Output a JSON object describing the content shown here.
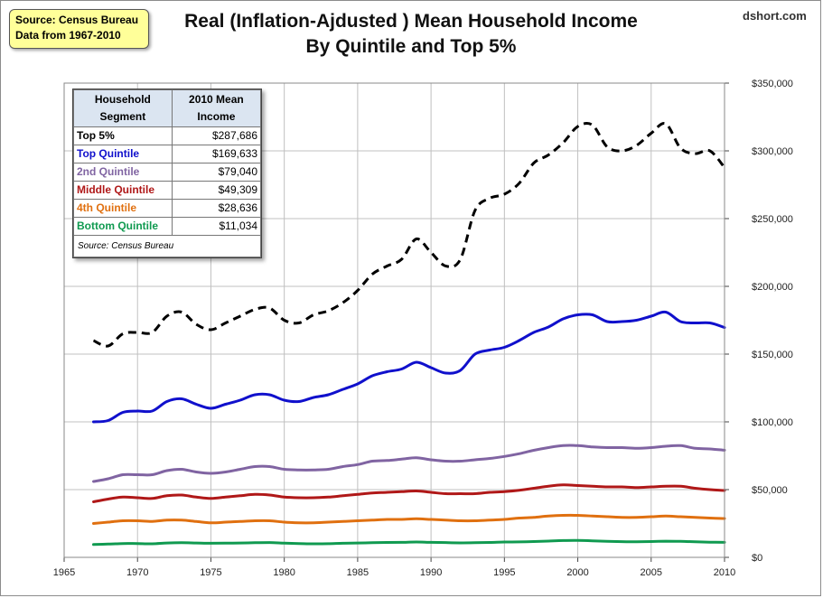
{
  "source_box": {
    "line1": "Source: Census Bureau",
    "line2": "Data from 1967-2010"
  },
  "title": {
    "line1": "Real (Inflation-Ajdusted ) Mean Household Income",
    "line2": "By Quintile and Top 5%"
  },
  "brand": "dshort.com",
  "table": {
    "headers": [
      "Household Segment",
      "2010 Mean Income"
    ],
    "rows": [
      {
        "label": "Top 5%",
        "value": "$287,686",
        "color": "#000000"
      },
      {
        "label": "Top Quintile",
        "value": "$169,633",
        "color": "#1010cc"
      },
      {
        "label": "2nd Quintile",
        "value": "$79,040",
        "color": "#8064a2"
      },
      {
        "label": "Middle Quintile",
        "value": "$49,309",
        "color": "#b01818"
      },
      {
        "label": "4th Quintile",
        "value": "$28,636",
        "color": "#e07010"
      },
      {
        "label": "Bottom Quintile",
        "value": "$11,034",
        "color": "#109a50"
      }
    ],
    "note": "Source: Census Bureau"
  },
  "chart_data": {
    "type": "line",
    "x": [
      1967,
      1968,
      1969,
      1970,
      1971,
      1972,
      1973,
      1974,
      1975,
      1976,
      1977,
      1978,
      1979,
      1980,
      1981,
      1982,
      1983,
      1984,
      1985,
      1986,
      1987,
      1988,
      1989,
      1990,
      1991,
      1992,
      1993,
      1994,
      1995,
      1996,
      1997,
      1998,
      1999,
      2000,
      2001,
      2002,
      2003,
      2004,
      2005,
      2006,
      2007,
      2008,
      2009,
      2010
    ],
    "xlim": [
      1965,
      2010
    ],
    "xticks": [
      1965,
      1970,
      1975,
      1980,
      1985,
      1990,
      1995,
      2000,
      2005,
      2010
    ],
    "ylim": [
      0,
      350000
    ],
    "yticks": [
      0,
      50000,
      100000,
      150000,
      200000,
      250000,
      300000,
      350000
    ],
    "ytick_labels": [
      "$0",
      "$50,000",
      "$100,000",
      "$150,000",
      "$200,000",
      "$250,000",
      "$300,000",
      "$350,000"
    ],
    "axis_side": "right",
    "grid": true,
    "series": [
      {
        "name": "Top 5%",
        "color": "#000000",
        "style": "dashed",
        "values": [
          160000,
          156000,
          165000,
          166000,
          166000,
          178000,
          181000,
          172000,
          168000,
          173000,
          178000,
          183000,
          184000,
          175000,
          173000,
          179000,
          182000,
          188000,
          197000,
          209000,
          215000,
          220000,
          235000,
          225000,
          215000,
          220000,
          256000,
          265000,
          268000,
          276000,
          291000,
          297000,
          306000,
          318000,
          319000,
          303000,
          300000,
          304000,
          313000,
          320000,
          302000,
          298000,
          300000,
          287686
        ]
      },
      {
        "name": "Top Quintile",
        "color": "#1010cc",
        "style": "solid",
        "values": [
          100000,
          101000,
          107000,
          108000,
          108000,
          115000,
          117000,
          113000,
          110000,
          113000,
          116000,
          120000,
          120000,
          116000,
          115000,
          118000,
          120000,
          124000,
          128000,
          134000,
          137000,
          139000,
          144000,
          140000,
          136000,
          138000,
          150000,
          153000,
          155000,
          160000,
          166000,
          170000,
          176000,
          179000,
          179000,
          174000,
          174000,
          175000,
          178000,
          181000,
          174000,
          173000,
          173000,
          169633
        ]
      },
      {
        "name": "2nd Quintile",
        "color": "#8064a2",
        "style": "solid",
        "values": [
          56000,
          58000,
          61000,
          61000,
          61000,
          64000,
          65000,
          63000,
          62000,
          63000,
          65000,
          67000,
          67000,
          65000,
          64500,
          64500,
          65000,
          67000,
          68500,
          71000,
          71500,
          72500,
          73500,
          72000,
          71000,
          71000,
          72000,
          73000,
          74500,
          76500,
          79000,
          81000,
          82500,
          82500,
          81500,
          81000,
          81000,
          80500,
          81000,
          82000,
          82500,
          80500,
          80000,
          79040
        ]
      },
      {
        "name": "Middle Quintile",
        "color": "#b01818",
        "style": "solid",
        "values": [
          41000,
          43000,
          44500,
          44000,
          43500,
          45500,
          46000,
          44500,
          43500,
          44500,
          45500,
          46500,
          46000,
          44500,
          44000,
          44000,
          44500,
          45500,
          46500,
          47500,
          48000,
          48500,
          49000,
          48000,
          47000,
          47000,
          47000,
          48000,
          48500,
          49500,
          51000,
          52500,
          53500,
          53000,
          52500,
          52000,
          52000,
          51500,
          52000,
          52500,
          52500,
          51000,
          50000,
          49309
        ]
      },
      {
        "name": "4th Quintile",
        "color": "#e07010",
        "style": "solid",
        "values": [
          25000,
          26000,
          27000,
          27000,
          26500,
          27500,
          27500,
          26500,
          25500,
          26000,
          26500,
          27000,
          27000,
          26000,
          25500,
          25500,
          26000,
          26500,
          27000,
          27500,
          28000,
          28000,
          28500,
          28000,
          27500,
          27000,
          27000,
          27500,
          28000,
          29000,
          29500,
          30500,
          31000,
          31000,
          30500,
          30000,
          29500,
          29500,
          30000,
          30500,
          30000,
          29500,
          29000,
          28636
        ]
      },
      {
        "name": "Bottom Quintile",
        "color": "#109a50",
        "style": "solid",
        "values": [
          9500,
          9800,
          10200,
          10200,
          10000,
          10600,
          10800,
          10600,
          10400,
          10500,
          10600,
          10800,
          10900,
          10500,
          10200,
          10000,
          10100,
          10400,
          10600,
          10800,
          11000,
          11100,
          11300,
          11100,
          10900,
          10700,
          10800,
          11000,
          11300,
          11400,
          11700,
          12000,
          12400,
          12500,
          12200,
          11800,
          11600,
          11500,
          11700,
          11900,
          11800,
          11500,
          11200,
          11034
        ]
      }
    ]
  }
}
